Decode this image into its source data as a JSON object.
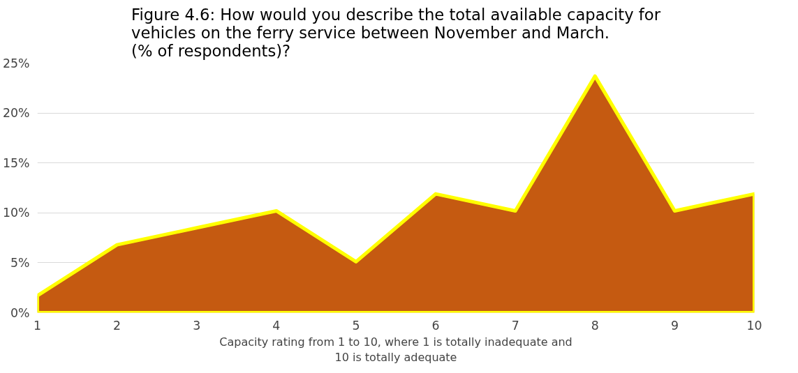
{
  "chart_data": {
    "type": "area",
    "title": "Figure 4.6: How would you describe the total available capacity for\nvehicles on the ferry service between November and March.\n(% of respondents)?",
    "xlabel": "Capacity rating from 1 to 10, where 1 is totally inadequate and\n10 is totally adequate",
    "x": [
      1,
      2,
      3,
      4,
      5,
      6,
      7,
      8,
      9,
      10
    ],
    "series": [
      {
        "color": "#c55a11",
        "values": [
          1.7,
          6.8,
          8.5,
          10.2,
          5.1,
          11.9,
          10.2,
          23.7,
          10.2,
          11.9
        ]
      }
    ],
    "xlim": [
      1,
      10
    ],
    "xticks": [
      1,
      2,
      3,
      4,
      5,
      6,
      7,
      8,
      9,
      10
    ],
    "ylim": [
      0,
      25
    ],
    "yticks": [
      {
        "value": 0,
        "label": "0%"
      },
      {
        "value": 5,
        "label": "5%"
      },
      {
        "value": 10,
        "label": "10%"
      },
      {
        "value": 15,
        "label": "15%"
      },
      {
        "value": 20,
        "label": "20%"
      },
      {
        "value": 25,
        "label": "25%"
      }
    ],
    "grid": "y"
  }
}
